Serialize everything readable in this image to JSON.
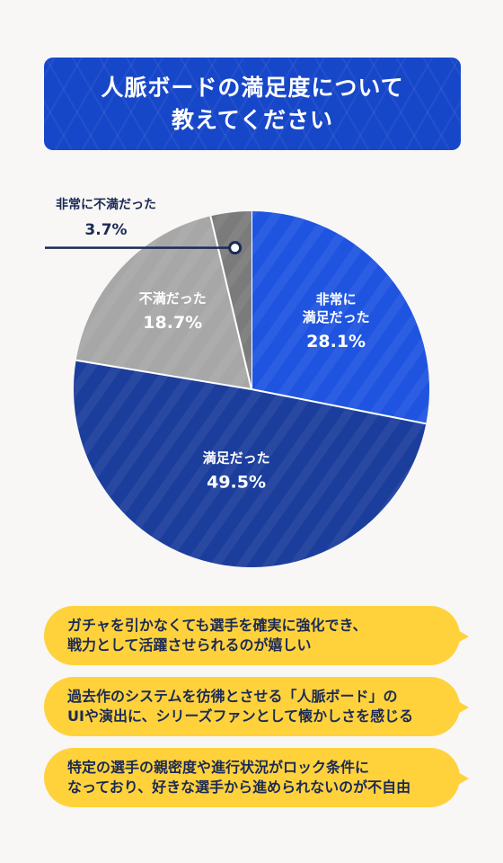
{
  "title": {
    "line1": "人脈ボードの満足度について",
    "line2": "教えてください"
  },
  "chart_data": {
    "type": "pie",
    "slices": [
      {
        "label_lines": [
          "非常に",
          "満足だった"
        ],
        "value": 28.1,
        "pct_label": "28.1%",
        "color": "#1e54e0"
      },
      {
        "label_lines": [
          "満足だった"
        ],
        "value": 49.5,
        "pct_label": "49.5%",
        "color": "#1b3d9c"
      },
      {
        "label_lines": [
          "不満だった"
        ],
        "value": 18.7,
        "pct_label": "18.7%",
        "color": "#a7a7a7"
      },
      {
        "label_lines": [
          "非常に不満だった"
        ],
        "value": 3.7,
        "pct_label": "3.7%",
        "color": "#7b7b7b"
      }
    ]
  },
  "comments": [
    {
      "line1": "ガチャを引かなくても選手を確実に強化でき、",
      "line2": "戦力として活躍させられるのが嬉しい"
    },
    {
      "line1": "過去作のシステムを彷彿とさせる「人脈ボード」の",
      "line2": "UIや演出に、シリーズファンとして懐かしさを感じる"
    },
    {
      "line1": "特定の選手の親密度や進行状況がロック条件に",
      "line2": "なっており、好きな選手から進められないのが不自由"
    }
  ],
  "colors": {
    "banner": "#1747c9",
    "bubble": "#ffd23c",
    "text_dark": "#1c2a55"
  }
}
